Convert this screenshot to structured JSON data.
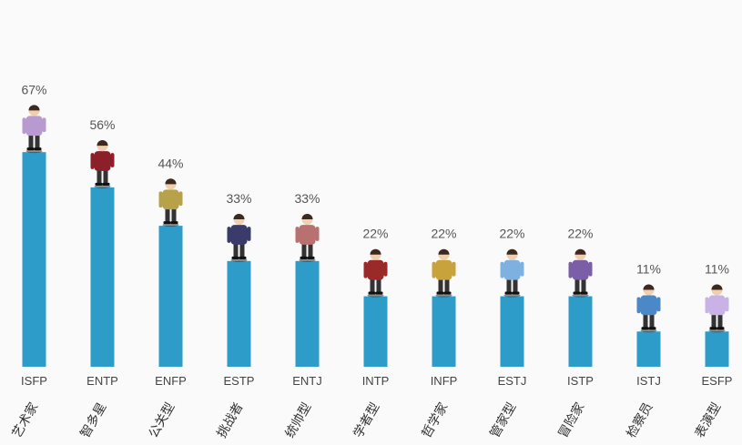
{
  "chart_data": {
    "type": "bar",
    "title": "",
    "xlabel": "",
    "ylabel": "",
    "ylim": [
      0,
      100
    ],
    "grid": false,
    "categories": [
      "ISFP",
      "ENTP",
      "ENFP",
      "ESTP",
      "ENTJ",
      "INTP",
      "INFP",
      "ESTJ",
      "ISTP",
      "ISTJ",
      "ESFP"
    ],
    "category_names": [
      "艺术家",
      "智多星",
      "公关型",
      "挑战者",
      "统帅型",
      "学者型",
      "哲学家",
      "管家型",
      "冒险家",
      "检察员",
      "表演型"
    ],
    "values": [
      67,
      56,
      44,
      33,
      33,
      22,
      22,
      22,
      22,
      11,
      11
    ],
    "value_labels": [
      "67%",
      "56%",
      "44%",
      "33%",
      "33%",
      "22%",
      "22%",
      "22%",
      "22%",
      "11%",
      "11%"
    ],
    "colors": {
      "bar": "#2e9cc9",
      "figure_accents": [
        "#b89ad0",
        "#8b1f2a",
        "#b7a24a",
        "#3b3b6b",
        "#b87070",
        "#9a2a2a",
        "#c8a23a",
        "#7fb1e0",
        "#7a5ea8",
        "#4a88c8",
        "#c9b2e6"
      ]
    }
  }
}
